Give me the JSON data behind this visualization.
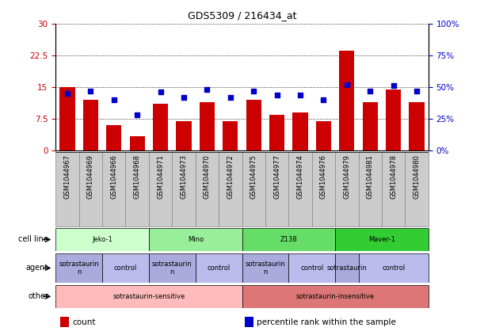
{
  "title": "GDS5309 / 216434_at",
  "samples": [
    "GSM1044967",
    "GSM1044969",
    "GSM1044966",
    "GSM1044968",
    "GSM1044971",
    "GSM1044973",
    "GSM1044970",
    "GSM1044972",
    "GSM1044975",
    "GSM1044977",
    "GSM1044974",
    "GSM1044976",
    "GSM1044979",
    "GSM1044981",
    "GSM1044978",
    "GSM1044980"
  ],
  "counts": [
    15.0,
    12.0,
    6.0,
    3.5,
    11.0,
    7.0,
    11.5,
    7.0,
    12.0,
    8.5,
    9.0,
    7.0,
    23.5,
    11.5,
    14.5,
    11.5
  ],
  "percentiles": [
    45,
    47,
    40,
    28,
    46,
    42,
    48,
    42,
    47,
    44,
    44,
    40,
    52,
    47,
    51,
    47
  ],
  "ylim_left": [
    0,
    30
  ],
  "ylim_right": [
    0,
    100
  ],
  "yticks_left": [
    0,
    7.5,
    15.0,
    22.5,
    30
  ],
  "yticks_right": [
    0,
    25,
    50,
    75,
    100
  ],
  "ytick_labels_left": [
    "0",
    "7.5",
    "15",
    "22.5",
    "30"
  ],
  "ytick_labels_right": [
    "0%",
    "25%",
    "50%",
    "75%",
    "100%"
  ],
  "bar_color": "#cc0000",
  "dot_color": "#0000cc",
  "cell_line_groups": [
    {
      "text": "Jeko-1",
      "start": 0,
      "end": 4,
      "color": "#ccffcc"
    },
    {
      "text": "Mino",
      "start": 4,
      "end": 8,
      "color": "#99ee99"
    },
    {
      "text": "Z138",
      "start": 8,
      "end": 12,
      "color": "#66dd66"
    },
    {
      "text": "Maver-1",
      "start": 12,
      "end": 16,
      "color": "#33cc33"
    }
  ],
  "agent_groups": [
    {
      "text": "sotrastaurin\nn",
      "start": 0,
      "end": 2,
      "color": "#aaaadd"
    },
    {
      "text": "control",
      "start": 2,
      "end": 4,
      "color": "#bbbbee"
    },
    {
      "text": "sotrastaurin\nn",
      "start": 4,
      "end": 6,
      "color": "#aaaadd"
    },
    {
      "text": "control",
      "start": 6,
      "end": 8,
      "color": "#bbbbee"
    },
    {
      "text": "sotrastaurin\nn",
      "start": 8,
      "end": 10,
      "color": "#aaaadd"
    },
    {
      "text": "control",
      "start": 10,
      "end": 12,
      "color": "#bbbbee"
    },
    {
      "text": "sotrastaurin",
      "start": 12,
      "end": 13,
      "color": "#aaaadd"
    },
    {
      "text": "control",
      "start": 13,
      "end": 16,
      "color": "#bbbbee"
    }
  ],
  "other_groups": [
    {
      "text": "sotrastaurin-sensitive",
      "start": 0,
      "end": 8,
      "color": "#ffbbbb"
    },
    {
      "text": "sotrastaurin-insensitive",
      "start": 8,
      "end": 16,
      "color": "#dd7777"
    }
  ],
  "row_labels": [
    "cell line",
    "agent",
    "other"
  ],
  "legend_items": [
    {
      "color": "#cc0000",
      "label": "count"
    },
    {
      "color": "#0000cc",
      "label": "percentile rank within the sample"
    }
  ],
  "tick_label_color_left": "#cc0000",
  "tick_label_color_right": "#0000cc",
  "xtick_bg_color": "#cccccc",
  "xtick_edge_color": "#888888"
}
